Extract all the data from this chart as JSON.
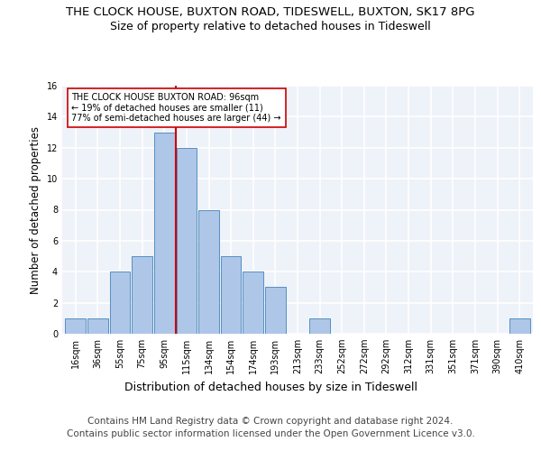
{
  "title1": "THE CLOCK HOUSE, BUXTON ROAD, TIDESWELL, BUXTON, SK17 8PG",
  "title2": "Size of property relative to detached houses in Tideswell",
  "xlabel": "Distribution of detached houses by size in Tideswell",
  "ylabel": "Number of detached properties",
  "bin_labels": [
    "16sqm",
    "36sqm",
    "55sqm",
    "75sqm",
    "95sqm",
    "115sqm",
    "134sqm",
    "154sqm",
    "174sqm",
    "193sqm",
    "213sqm",
    "233sqm",
    "252sqm",
    "272sqm",
    "292sqm",
    "312sqm",
    "331sqm",
    "351sqm",
    "371sqm",
    "390sqm",
    "410sqm"
  ],
  "counts": [
    1,
    1,
    4,
    5,
    13,
    12,
    8,
    5,
    4,
    3,
    0,
    1,
    0,
    0,
    0,
    0,
    0,
    0,
    0,
    0,
    1
  ],
  "bar_color": "#aec6e8",
  "bar_edge_color": "#5590c0",
  "vline_index": 4,
  "vline_color": "#cc0000",
  "annotation_text": "THE CLOCK HOUSE BUXTON ROAD: 96sqm\n← 19% of detached houses are smaller (11)\n77% of semi-detached houses are larger (44) →",
  "annotation_box_color": "white",
  "annotation_box_edge": "#cc0000",
  "ylim": [
    0,
    16
  ],
  "yticks": [
    0,
    2,
    4,
    6,
    8,
    10,
    12,
    14,
    16
  ],
  "footer1": "Contains HM Land Registry data © Crown copyright and database right 2024.",
  "footer2": "Contains public sector information licensed under the Open Government Licence v3.0.",
  "background_color": "#eef2f9",
  "grid_color": "white",
  "title1_fontsize": 9.5,
  "title2_fontsize": 9,
  "xlabel_fontsize": 9,
  "ylabel_fontsize": 8.5,
  "footer_fontsize": 7.5,
  "tick_fontsize": 7
}
